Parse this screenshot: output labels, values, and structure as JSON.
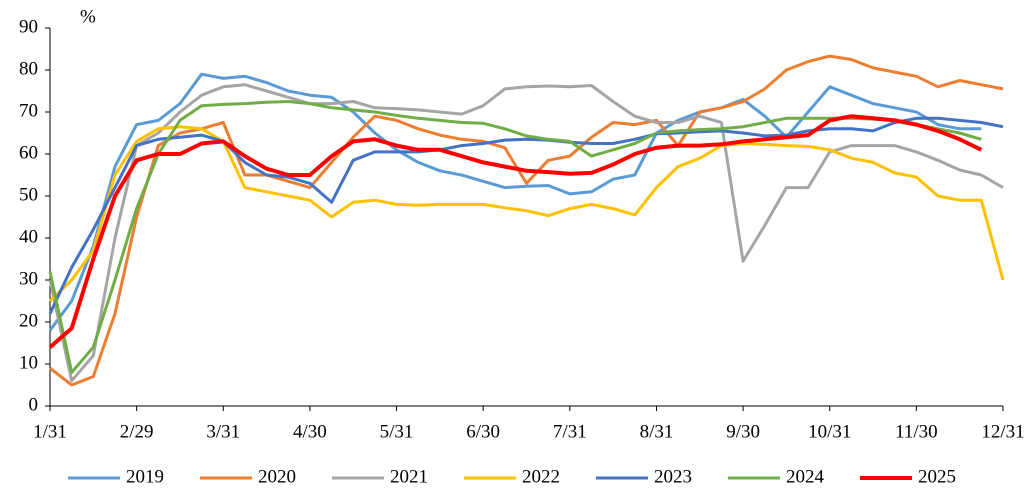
{
  "chart_data": {
    "type": "line",
    "y_label": "%",
    "x": [
      0,
      0.25,
      0.5,
      0.75,
      1,
      1.25,
      1.5,
      1.75,
      2,
      2.25,
      2.5,
      2.75,
      3,
      3.25,
      3.5,
      3.75,
      4,
      4.25,
      4.5,
      4.75,
      5,
      5.25,
      5.5,
      5.75,
      6,
      6.25,
      6.5,
      6.75,
      7,
      7.25,
      7.5,
      7.75,
      8,
      8.25,
      8.5,
      8.75,
      9,
      9.25,
      9.5,
      9.75,
      10,
      10.25,
      10.5,
      10.75,
      11
    ],
    "xlim": [
      0,
      11
    ],
    "xticks": [
      {
        "value": 0,
        "label": "1/31"
      },
      {
        "value": 1,
        "label": "2/29"
      },
      {
        "value": 2,
        "label": "3/31"
      },
      {
        "value": 3,
        "label": "4/30"
      },
      {
        "value": 4,
        "label": "5/31"
      },
      {
        "value": 5,
        "label": "6/30"
      },
      {
        "value": 6,
        "label": "7/31"
      },
      {
        "value": 7,
        "label": "8/31"
      },
      {
        "value": 8,
        "label": "9/30"
      },
      {
        "value": 9,
        "label": "10/31"
      },
      {
        "value": 10,
        "label": "11/30"
      },
      {
        "value": 11,
        "label": "12/31"
      }
    ],
    "ylim": [
      0,
      90
    ],
    "yticks": [
      0,
      10,
      20,
      30,
      40,
      50,
      60,
      70,
      80,
      90
    ],
    "series": [
      {
        "name": "2019",
        "color": "#5b9bd5",
        "values": [
          18,
          25,
          38,
          57,
          67,
          68,
          72,
          79,
          78,
          78.5,
          77,
          75,
          74,
          73.5,
          70,
          65,
          61,
          58,
          56,
          55,
          53.5,
          52,
          52.3,
          52.5,
          50.5,
          51,
          54,
          55,
          65,
          68,
          70,
          71,
          73,
          69,
          64,
          70,
          76,
          74,
          72,
          71,
          70,
          67,
          66,
          66,
          null
        ]
      },
      {
        "name": "2020",
        "color": "#ed7d31",
        "values": [
          9,
          5,
          7,
          22,
          45,
          62,
          65,
          66,
          67.5,
          55,
          55,
          53.5,
          52,
          58,
          64,
          69,
          68,
          66,
          64.5,
          63.5,
          63,
          61.5,
          53,
          58.5,
          59.5,
          64,
          67.5,
          67,
          68,
          62,
          70,
          71,
          72.5,
          75.5,
          80,
          82,
          83.3,
          82.5,
          80.5,
          79.5,
          78.5,
          76,
          77.5,
          76.5,
          75.5
        ]
      },
      {
        "name": "2021",
        "color": "#a5a5a5",
        "values": [
          30,
          6,
          12,
          40,
          62,
          65,
          70,
          74,
          76,
          76.5,
          75,
          73.5,
          72,
          72,
          72.5,
          71,
          70.8,
          70.5,
          70,
          69.5,
          71.5,
          75.5,
          76,
          76.2,
          76,
          76.3,
          72.5,
          69,
          67.5,
          67.5,
          69,
          67.5,
          34.5,
          43,
          52,
          52,
          60.5,
          62,
          62,
          62,
          60.5,
          58.5,
          56.2,
          55,
          52
        ]
      },
      {
        "name": "2022",
        "color": "#ffc000",
        "values": [
          25,
          30,
          37,
          55,
          63,
          66,
          66.5,
          66,
          63,
          52,
          51,
          50,
          49,
          45,
          48.5,
          49,
          48,
          47.8,
          48,
          48,
          48,
          47.2,
          46.5,
          45.3,
          47,
          48,
          47,
          45.5,
          52,
          57,
          59,
          62,
          62.5,
          62.3,
          62,
          61.8,
          61,
          59,
          58,
          55.5,
          54.5,
          50,
          49,
          49,
          30
        ]
      },
      {
        "name": "2023",
        "color": "#4472c4",
        "values": [
          22,
          33,
          42,
          52,
          62,
          63.5,
          64,
          64.5,
          63,
          58,
          55,
          54.5,
          53,
          48.5,
          58.5,
          60.5,
          60.5,
          60.5,
          61,
          62,
          62.5,
          63.3,
          63.5,
          63.3,
          62.8,
          62.5,
          62.5,
          63.5,
          64.8,
          65,
          65.3,
          65.5,
          65,
          64.3,
          64.5,
          65.5,
          66,
          66,
          65.5,
          67.5,
          68.5,
          68.5,
          68,
          67.5,
          66.5
        ]
      },
      {
        "name": "2024",
        "color": "#70ad47",
        "values": [
          32,
          8,
          14,
          30,
          47,
          60,
          68,
          71.5,
          71.8,
          72,
          72.3,
          72.5,
          72,
          71,
          70.5,
          70,
          69.2,
          68.5,
          68,
          67.5,
          67.3,
          66,
          64.3,
          63.5,
          63,
          59.5,
          61,
          62.5,
          65,
          65.5,
          65.8,
          66,
          66.5,
          67.5,
          68.5,
          68.5,
          68.5,
          68.5,
          68.3,
          68,
          67,
          66,
          65,
          63.5,
          null
        ]
      },
      {
        "name": "2025",
        "color": "#ff0000",
        "values": [
          14,
          18.5,
          35,
          50,
          58.5,
          60,
          60,
          62.5,
          63,
          59.5,
          56.5,
          55,
          55,
          59.5,
          63,
          63.5,
          62,
          61,
          61,
          59.5,
          58,
          57,
          56,
          55.7,
          55.3,
          55.5,
          57.5,
          60,
          61.5,
          62,
          62,
          62.3,
          63,
          63.5,
          64,
          64.5,
          68,
          69,
          68.5,
          68,
          67,
          65.5,
          63.5,
          61,
          null
        ]
      }
    ]
  }
}
